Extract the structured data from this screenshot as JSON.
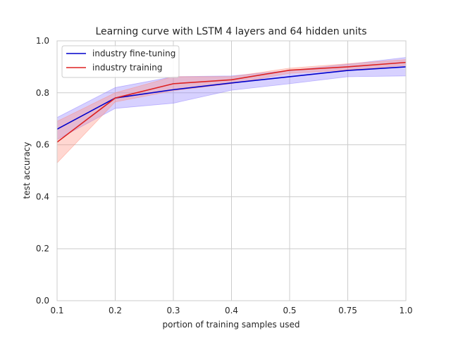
{
  "chart_data": {
    "type": "line",
    "title": "Learning curve with LSTM 4 layers and 64 hidden units",
    "xlabel": "portion of training samples used",
    "ylabel": "test accuracy",
    "categories": [
      "0.1",
      "0.2",
      "0.3",
      "0.4",
      "0.5",
      "0.75",
      "1.0"
    ],
    "yticks": [
      "0.0",
      "0.2",
      "0.4",
      "0.6",
      "0.8",
      "1.0"
    ],
    "ylim": [
      0,
      1
    ],
    "grid": true,
    "legend_position": "top-left",
    "series": [
      {
        "name": "industry fine-tuning",
        "color": "#0000cc",
        "band_color": "#8c7cff",
        "values": [
          0.66,
          0.78,
          0.812,
          0.838,
          0.862,
          0.886,
          0.9
        ],
        "lower": [
          0.62,
          0.74,
          0.76,
          0.81,
          0.835,
          0.862,
          0.865
        ],
        "upper": [
          0.705,
          0.82,
          0.862,
          0.865,
          0.886,
          0.91,
          0.936
        ]
      },
      {
        "name": "industry training",
        "color": "#dd2222",
        "band_color": "#ff8c7a",
        "values": [
          0.61,
          0.78,
          0.835,
          0.85,
          0.887,
          0.9,
          0.917
        ],
        "lower": [
          0.53,
          0.765,
          0.808,
          0.835,
          0.875,
          0.888,
          0.905
        ],
        "upper": [
          0.69,
          0.8,
          0.862,
          0.862,
          0.895,
          0.912,
          0.928
        ]
      }
    ]
  }
}
